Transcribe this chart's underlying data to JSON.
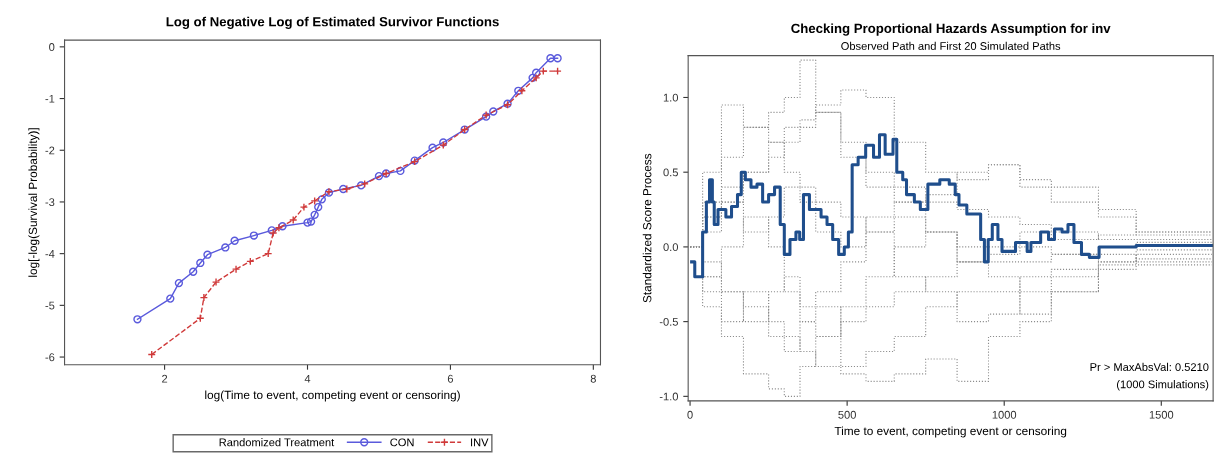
{
  "chart_data": [
    {
      "type": "line",
      "title": "Log of Negative Log of Estimated Survivor Functions",
      "xlabel": "log(Time to event, competing event or censoring)",
      "ylabel": "log[-log(Survival Probability)]",
      "legend_title": "Randomized Treatment",
      "legend": "bottom",
      "grid": false,
      "xlim": [
        0.6,
        8.1
      ],
      "ylim": [
        -6.15,
        0.13
      ],
      "xticks": [
        2,
        4,
        6,
        8
      ],
      "yticks": [
        0,
        -1,
        -2,
        -3,
        -4,
        -5,
        -6
      ],
      "series": [
        {
          "name": "CON",
          "color": "#5a5adc",
          "marker": "circle",
          "line_style": "solid",
          "x": [
            1.62,
            2.08,
            2.2,
            2.4,
            2.5,
            2.6,
            2.85,
            2.98,
            3.25,
            3.5,
            3.65,
            4.0,
            4.05,
            4.1,
            4.15,
            4.2,
            4.3,
            4.5,
            4.75,
            5.0,
            5.1,
            5.3,
            5.5,
            5.75,
            5.9,
            6.2,
            6.5,
            6.6,
            6.8,
            6.95,
            7.15,
            7.2,
            7.4,
            7.5
          ],
          "values": [
            -5.27,
            -4.87,
            -4.57,
            -4.35,
            -4.18,
            -4.02,
            -3.88,
            -3.75,
            -3.65,
            -3.55,
            -3.47,
            -3.4,
            -3.38,
            -3.25,
            -3.1,
            -2.95,
            -2.82,
            -2.75,
            -2.68,
            -2.5,
            -2.45,
            -2.4,
            -2.2,
            -1.95,
            -1.85,
            -1.6,
            -1.35,
            -1.25,
            -1.1,
            -0.85,
            -0.6,
            -0.5,
            -0.22,
            -0.22
          ]
        },
        {
          "name": "INV",
          "color": "#d03a3a",
          "marker": "cross",
          "line_style": "dashed",
          "x": [
            1.82,
            2.5,
            2.55,
            2.72,
            3.0,
            3.2,
            3.45,
            3.52,
            3.6,
            3.8,
            3.95,
            4.1,
            4.3,
            4.55,
            4.8,
            5.1,
            5.5,
            5.9,
            6.2,
            6.5,
            6.8,
            7.0,
            7.2,
            7.3,
            7.5
          ],
          "values": [
            -5.95,
            -5.25,
            -4.85,
            -4.55,
            -4.3,
            -4.15,
            -4.0,
            -3.6,
            -3.5,
            -3.35,
            -3.1,
            -2.98,
            -2.8,
            -2.75,
            -2.65,
            -2.45,
            -2.22,
            -1.9,
            -1.6,
            -1.32,
            -1.12,
            -0.85,
            -0.6,
            -0.47,
            -0.47
          ]
        }
      ]
    },
    {
      "type": "step",
      "title": "Checking Proportional Hazards Assumption for inv",
      "subtitle": "Observed Path and First 20 Simulated Paths",
      "xlabel": "Time to event, competing event or censoring",
      "ylabel": "Standardized Score Process",
      "grid": false,
      "legend": false,
      "annotations": [
        "Pr > MaxAbsVal: 0.5210",
        "(1000 Simulations)"
      ],
      "xlim": [
        -6,
        1665
      ],
      "ylim": [
        -1.03,
        1.28
      ],
      "xticks": [
        0,
        500,
        1000,
        1500
      ],
      "yticks": [
        {
          "value": 1.0,
          "label": "1.0"
        },
        {
          "value": 0.5,
          "label": "0.5"
        },
        {
          "value": 0.0,
          "label": "0.0"
        },
        {
          "value": -0.5,
          "label": "-0.5"
        },
        {
          "value": -1.0,
          "label": "-1.0"
        }
      ],
      "x": [
        0,
        40,
        100,
        170,
        250,
        300,
        350,
        400,
        480,
        560,
        650,
        750,
        850,
        950,
        1050,
        1150,
        1300,
        1420,
        1661
      ],
      "series": [
        {
          "color": "#8c8c8c",
          "line_style": "dotted",
          "values": [
            0,
            0.3,
            0.6,
            0.8,
            0.9,
            1.0,
            1.25,
            0.9,
            0.7,
            0.5,
            0.4,
            0.3,
            0.25,
            0.2,
            0.15,
            0.1,
            0.05,
            0.05,
            0.05
          ]
        },
        {
          "color": "#8c8c8c",
          "line_style": "dotted",
          "values": [
            0,
            -0.3,
            -0.6,
            -0.85,
            -0.95,
            -1.0,
            -0.8,
            -0.6,
            -0.5,
            -0.4,
            -0.3,
            -0.2,
            -0.1,
            -0.05,
            0,
            -0.05,
            -0.1,
            -0.08,
            -0.08
          ]
        },
        {
          "color": "#8c8c8c",
          "line_style": "dotted",
          "values": [
            0,
            0.2,
            0.4,
            0.5,
            0.6,
            0.7,
            0.8,
            0.95,
            1.05,
            1.0,
            0.7,
            0.5,
            0.45,
            0.55,
            0.4,
            0.3,
            0.2,
            0.1,
            0.1
          ]
        },
        {
          "color": "#8c8c8c",
          "line_style": "dotted",
          "values": [
            0,
            -0.2,
            -0.3,
            -0.4,
            -0.5,
            -0.6,
            -0.7,
            -0.8,
            -0.85,
            -0.9,
            -0.85,
            -0.75,
            -0.9,
            -0.6,
            -0.5,
            -0.3,
            -0.1,
            -0.05,
            -0.05
          ]
        },
        {
          "color": "#8c8c8c",
          "line_style": "dotted",
          "values": [
            0,
            0.5,
            0.95,
            0.8,
            0.7,
            0.5,
            0.4,
            0.3,
            0.2,
            0.1,
            0.2,
            0.1,
            0,
            -0.1,
            -0.1,
            -0.05,
            0,
            0.03,
            0.03
          ]
        },
        {
          "color": "#8c8c8c",
          "line_style": "dotted",
          "values": [
            0,
            -0.4,
            -0.5,
            -0.3,
            -0.6,
            -0.7,
            -0.5,
            -0.4,
            -0.8,
            -0.7,
            -0.6,
            -0.4,
            -0.3,
            -0.3,
            -0.2,
            -0.15,
            -0.12,
            -0.12,
            -0.12
          ]
        },
        {
          "color": "#8c8c8c",
          "line_style": "dotted",
          "values": [
            0,
            0.1,
            0.3,
            0.5,
            0.7,
            0.8,
            0.85,
            0.9,
            0.6,
            0.4,
            0.3,
            0.35,
            0.5,
            0.55,
            0.45,
            0.4,
            0.25,
            0.08,
            0.08
          ]
        },
        {
          "color": "#8c8c8c",
          "line_style": "dotted",
          "values": [
            0,
            -0.2,
            0,
            0.2,
            0,
            -0.3,
            -0.5,
            -0.6,
            -0.4,
            -0.2,
            0,
            0.1,
            -0.1,
            -0.2,
            -0.45,
            -0.3,
            -0.15,
            -0.02,
            -0.02
          ]
        },
        {
          "color": "#8c8c8c",
          "line_style": "dotted",
          "values": [
            0,
            0.2,
            0.3,
            0.1,
            0.2,
            0.4,
            0.3,
            0.1,
            0,
            0.2,
            0.3,
            0.1,
            -0.1,
            0,
            0.1,
            0.05,
            0.08,
            0.1,
            0.1
          ]
        },
        {
          "color": "#8c8c8c",
          "line_style": "dotted",
          "values": [
            0,
            -0.1,
            -0.3,
            -0.5,
            -0.3,
            -0.2,
            -0.4,
            -0.3,
            -0.1,
            0.1,
            -0.2,
            -0.3,
            -0.5,
            -0.45,
            -0.3,
            -0.2,
            -0.05,
            -0.1,
            -0.1
          ]
        },
        {
          "color": "#1f4e8c",
          "line_style": "solid",
          "x": [
            5,
            15,
            27,
            40,
            52,
            62,
            71,
            77,
            89,
            101,
            114,
            132,
            151,
            163,
            176,
            194,
            213,
            231,
            250,
            269,
            287,
            300,
            318,
            337,
            349,
            361,
            380,
            399,
            417,
            436,
            454,
            473,
            491,
            504,
            516,
            535,
            559,
            584,
            603,
            621,
            646,
            658,
            677,
            689,
            714,
            733,
            757,
            795,
            825,
            844,
            856,
            881,
            912,
            925,
            937,
            949,
            962,
            980,
            993,
            1030,
            1036,
            1073,
            1085,
            1116,
            1141,
            1160,
            1184,
            1203,
            1222,
            1246,
            1271,
            1302,
            1420,
            1661
          ],
          "values": [
            -0.1,
            -0.2,
            -0.2,
            0.1,
            0.3,
            0.45,
            0.3,
            0.15,
            0.25,
            0.25,
            0.2,
            0.27,
            0.35,
            0.5,
            0.45,
            0.4,
            0.42,
            0.3,
            0.35,
            0.4,
            0.15,
            -0.05,
            0.05,
            0.1,
            0.05,
            0.35,
            0.25,
            0.25,
            0.2,
            0.15,
            0.05,
            -0.05,
            0.0,
            0.1,
            0.55,
            0.6,
            0.68,
            0.6,
            0.75,
            0.62,
            0.72,
            0.5,
            0.45,
            0.35,
            0.3,
            0.25,
            0.42,
            0.45,
            0.42,
            0.35,
            0.28,
            0.22,
            0.22,
            0.05,
            -0.1,
            0.05,
            0.15,
            0.05,
            -0.03,
            -0.03,
            0.03,
            -0.03,
            0.03,
            0.1,
            0.05,
            0.12,
            0.1,
            0.15,
            0.03,
            -0.05,
            -0.07,
            0.0,
            0.01,
            0.01
          ]
        }
      ]
    }
  ]
}
